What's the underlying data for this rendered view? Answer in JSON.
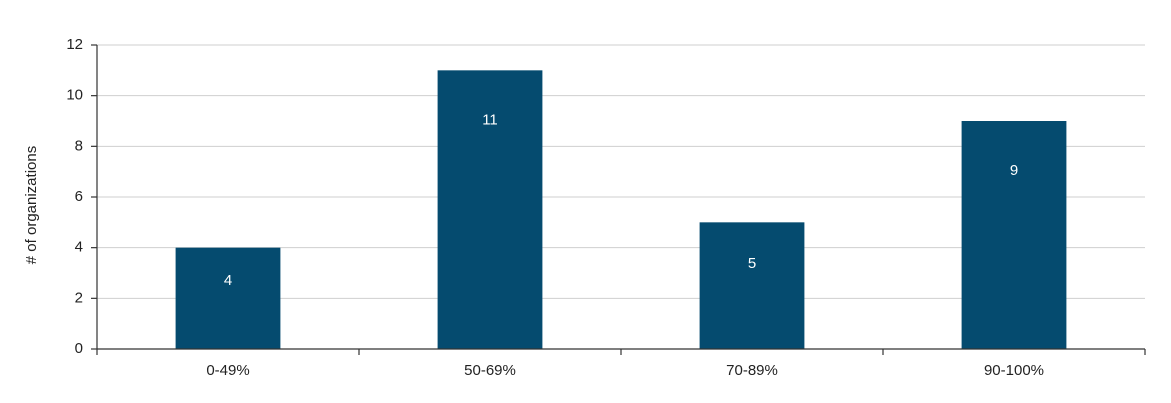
{
  "chart_data": {
    "type": "bar",
    "y_label": "# of organizations",
    "categories": [
      "0-49%",
      "50-69%",
      "70-89%",
      "90-100%"
    ],
    "values": [
      4,
      11,
      5,
      9
    ],
    "color": "#054b6f",
    "ylim": [
      0,
      12
    ],
    "yticks": [
      0,
      2,
      4,
      6,
      8,
      10,
      12
    ],
    "grid": true,
    "data_labels": true
  }
}
